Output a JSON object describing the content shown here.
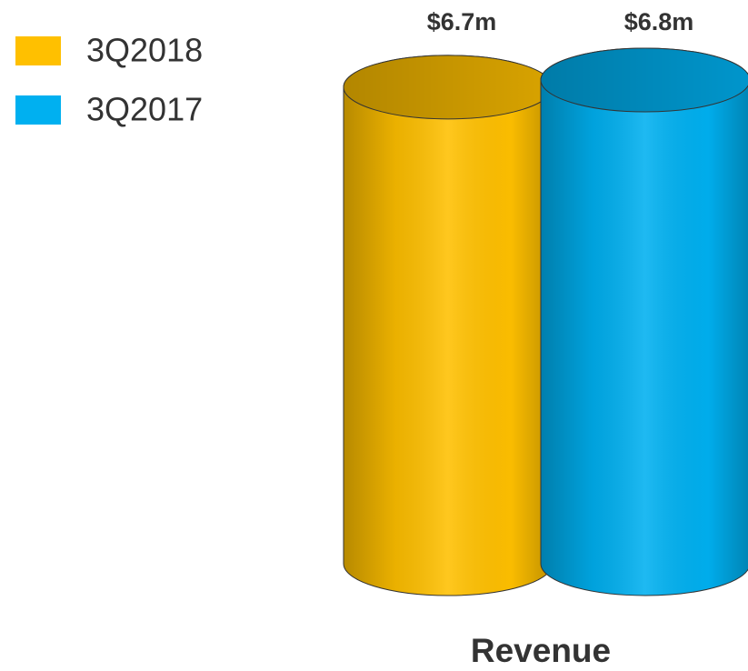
{
  "chart_data": {
    "type": "bar3d-cylinder",
    "categories": [
      "Revenue"
    ],
    "series": [
      {
        "name": "3Q2018",
        "color": "#FFC000",
        "values": [
          6.7
        ],
        "value_labels": [
          "$6.7m"
        ]
      },
      {
        "name": "3Q2017",
        "color": "#00B0F0",
        "values": [
          6.8
        ],
        "value_labels": [
          "$6.8m"
        ]
      }
    ],
    "legend": "top-left"
  }
}
